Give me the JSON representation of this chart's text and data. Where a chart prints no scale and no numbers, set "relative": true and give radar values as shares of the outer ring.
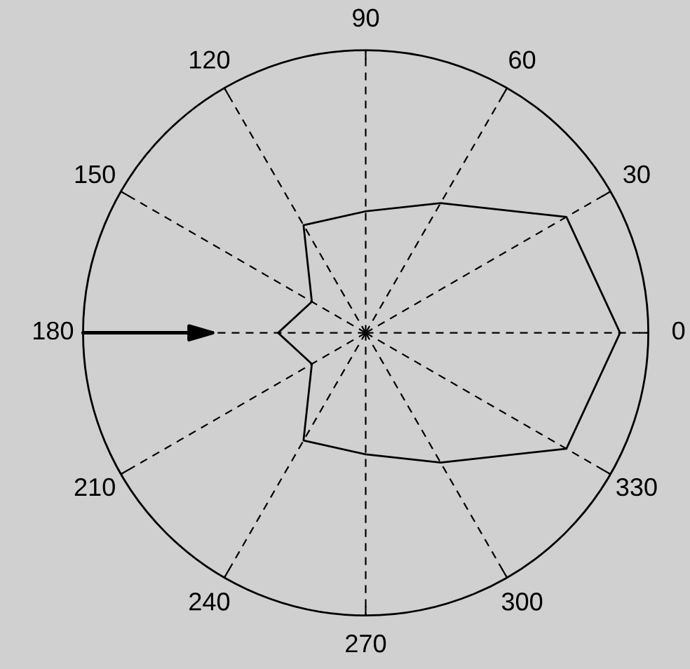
{
  "chart_data": {
    "type": "radar",
    "relative": true,
    "categories": [
      "90",
      "60",
      "30",
      "0",
      "330",
      "300",
      "270",
      "240",
      "210",
      "180",
      "150",
      "120"
    ],
    "grid": true,
    "series": [
      {
        "color": "#000000",
        "values": [
          0.43,
          0.53,
          0.82,
          0.9,
          0.82,
          0.53,
          0.43,
          0.44,
          0.22,
          0.31,
          0.22,
          0.44
        ]
      }
    ]
  }
}
